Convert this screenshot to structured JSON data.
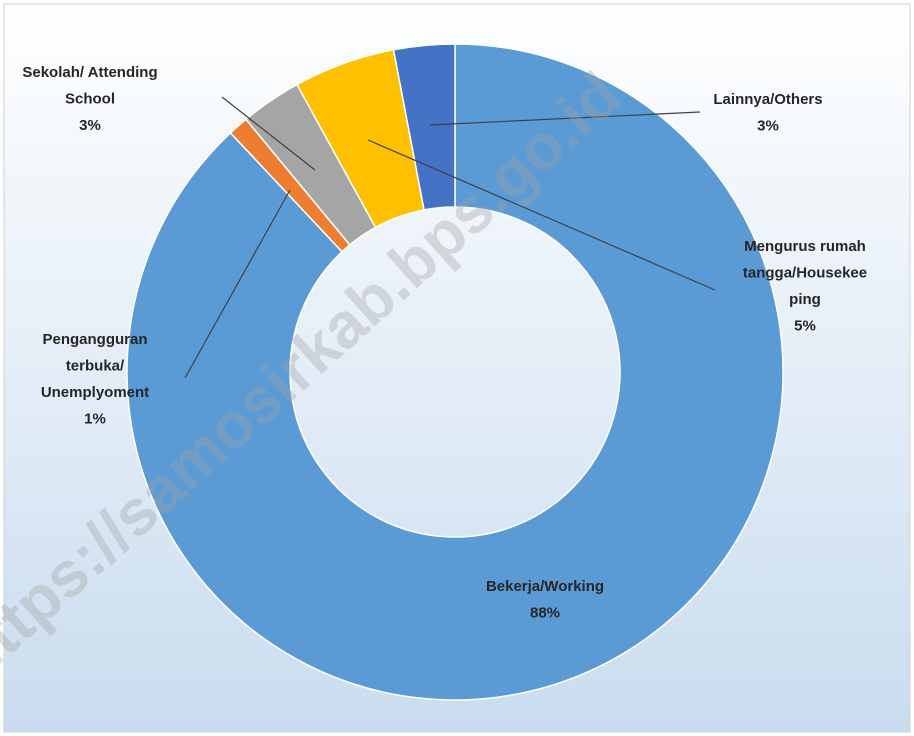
{
  "chart_data": {
    "type": "donut",
    "categories": [
      "Bekerja/Working",
      "Pengangguran\nterbuka/\nUnemplyoment",
      "Sekolah/ Attending\nSchool",
      "Mengurus rumah\ntangga/Housekee\nping",
      "Lainnya/Others"
    ],
    "values": [
      88,
      1,
      3,
      5,
      3
    ],
    "value_labels": [
      "88%",
      "1%",
      "3%",
      "5%",
      "3%"
    ],
    "colors": [
      "#5b9bd5",
      "#ed7d31",
      "#a5a5a5",
      "#ffc000",
      "#4472c4"
    ],
    "watermark": "https://samosirkab.bps.go.id"
  }
}
